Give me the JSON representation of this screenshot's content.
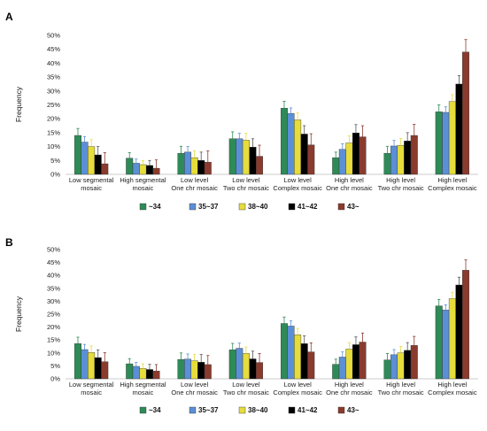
{
  "chart_data": [
    {
      "type": "bar",
      "panel_label": "A",
      "ylabel": "Frequency",
      "ylim": [
        0,
        50
      ],
      "yticks": [
        "0%",
        "5%",
        "10%",
        "15%",
        "20%",
        "25%",
        "30%",
        "35%",
        "40%",
        "45%",
        "50%"
      ],
      "categories": [
        [
          "Low segmental",
          "mosaic"
        ],
        [
          "High segmental",
          "mosaic"
        ],
        [
          "Low level",
          "One chr mosaic"
        ],
        [
          "Low level",
          "Two chr mosaic"
        ],
        [
          "Low level",
          "Complex mosaic"
        ],
        [
          "High level",
          "One chr mosaic"
        ],
        [
          "High level",
          "Two chr mosaic"
        ],
        [
          "High level",
          "Complex mosaic"
        ]
      ],
      "series": [
        {
          "name": "~34",
          "color": "#2e8b57",
          "values": [
            14.0,
            5.8,
            7.6,
            12.8,
            23.8,
            6.0,
            7.6,
            22.5
          ],
          "errors": [
            2.5,
            2.0,
            2.5,
            2.5,
            2.5,
            2.0,
            2.5,
            2.5
          ]
        },
        {
          "name": "35~37",
          "color": "#5b8fd6",
          "values": [
            11.6,
            4.0,
            8.0,
            12.8,
            21.9,
            9.0,
            10.2,
            22.3
          ],
          "errors": [
            2.0,
            1.5,
            2.0,
            2.0,
            2.0,
            2.0,
            2.0,
            2.0
          ]
        },
        {
          "name": "38~40",
          "color": "#e6dc3c",
          "values": [
            10.0,
            3.5,
            6.0,
            12.3,
            19.6,
            11.3,
            10.4,
            26.2
          ],
          "errors": [
            2.5,
            1.5,
            2.5,
            2.5,
            2.5,
            2.5,
            2.5,
            2.5
          ]
        },
        {
          "name": "41~42",
          "color": "#000000",
          "values": [
            7.0,
            3.2,
            5.0,
            9.8,
            14.5,
            14.9,
            12.0,
            32.5
          ],
          "errors": [
            3.0,
            1.8,
            3.0,
            3.0,
            3.0,
            3.0,
            3.0,
            3.0
          ]
        },
        {
          "name": "43~",
          "color": "#8b3a2e",
          "values": [
            3.8,
            2.2,
            4.4,
            6.5,
            10.6,
            13.5,
            14.0,
            44.0
          ],
          "errors": [
            4.0,
            3.0,
            4.0,
            4.0,
            4.0,
            4.0,
            4.0,
            4.5
          ]
        }
      ]
    },
    {
      "type": "bar",
      "panel_label": "B",
      "ylabel": "Frequency",
      "ylim": [
        0,
        50
      ],
      "yticks": [
        "0%",
        "5%",
        "10%",
        "15%",
        "20%",
        "25%",
        "30%",
        "35%",
        "40%",
        "45%",
        "50%"
      ],
      "categories": [
        [
          "Low segmental",
          "mosaic"
        ],
        [
          "High segmental",
          "mosaic"
        ],
        [
          "Low level",
          "One chr mosaic"
        ],
        [
          "Low level",
          "Two chr mosaic"
        ],
        [
          "Low level",
          "Complex mosaic"
        ],
        [
          "High level",
          "One chr mosaic"
        ],
        [
          "High level",
          "Two chr mosaic"
        ],
        [
          "High level",
          "Complex mosaic"
        ]
      ],
      "series": [
        {
          "name": "~34",
          "color": "#2e8b57",
          "values": [
            13.6,
            5.8,
            7.5,
            11.2,
            21.4,
            5.6,
            7.3,
            28.2
          ],
          "errors": [
            2.5,
            2.0,
            2.5,
            2.5,
            2.5,
            2.0,
            2.5,
            2.5
          ]
        },
        {
          "name": "35~37",
          "color": "#5b8fd6",
          "values": [
            11.3,
            4.8,
            7.6,
            11.8,
            20.4,
            8.4,
            9.3,
            26.6
          ],
          "errors": [
            2.0,
            1.5,
            2.0,
            2.0,
            2.0,
            2.0,
            2.0,
            2.0
          ]
        },
        {
          "name": "38~40",
          "color": "#e6dc3c",
          "values": [
            10.2,
            4.0,
            7.0,
            9.8,
            17.0,
            11.5,
            10.0,
            31.0
          ],
          "errors": [
            2.5,
            1.8,
            2.5,
            2.5,
            2.5,
            2.5,
            2.5,
            2.5
          ]
        },
        {
          "name": "41~42",
          "color": "#000000",
          "values": [
            8.2,
            3.6,
            6.4,
            7.7,
            13.6,
            13.2,
            11.0,
            36.3
          ],
          "errors": [
            3.0,
            2.0,
            3.0,
            3.0,
            3.0,
            3.0,
            3.0,
            3.0
          ]
        },
        {
          "name": "43~",
          "color": "#8b3a2e",
          "values": [
            6.6,
            3.0,
            5.5,
            6.3,
            10.4,
            14.2,
            12.9,
            42.0
          ],
          "errors": [
            3.5,
            2.5,
            3.5,
            3.5,
            3.5,
            3.5,
            3.5,
            4.0
          ]
        }
      ]
    }
  ]
}
